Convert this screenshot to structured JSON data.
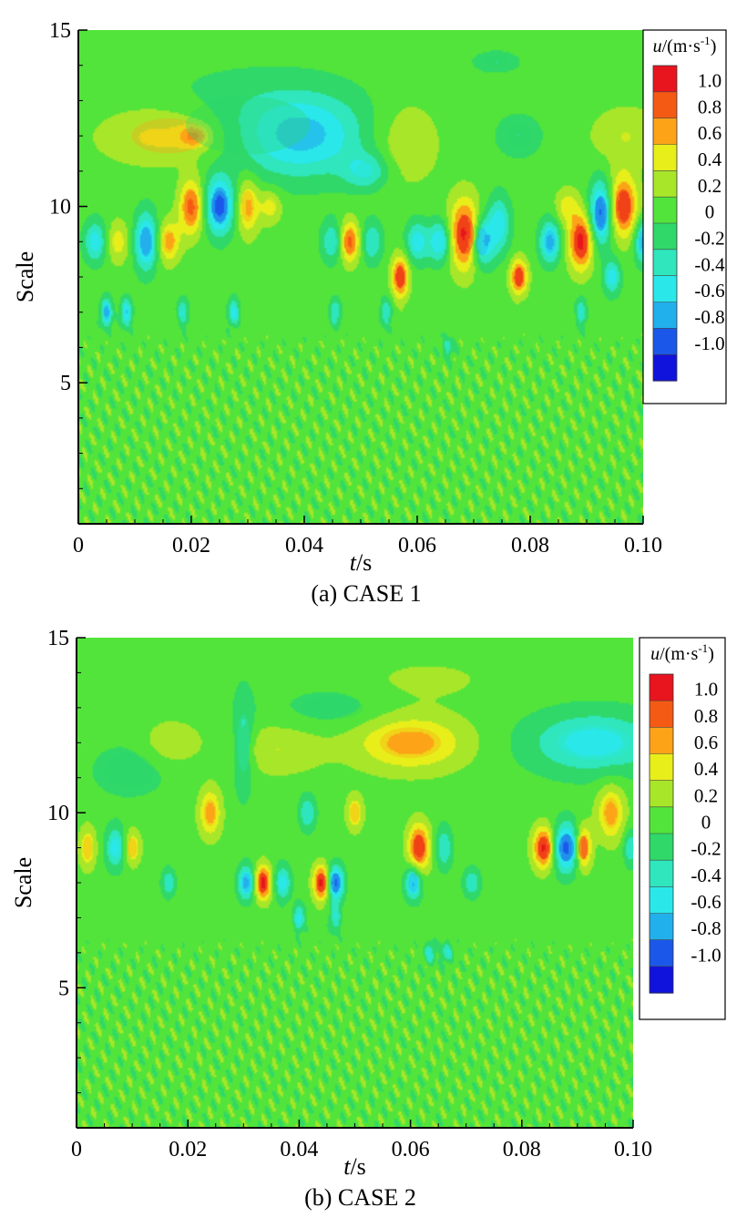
{
  "chart_data": [
    {
      "type": "heatmap",
      "panel_id": "a",
      "caption": "(a)  CASE 1",
      "xlabel": "t/s",
      "xlabel_italic": "t",
      "xlabel_unit": "/s",
      "ylabel": "Scale",
      "xlim": [
        0,
        0.1
      ],
      "ylim": [
        1,
        15
      ],
      "x_ticks": [
        0,
        0.02,
        0.04,
        0.06,
        0.08,
        0.1
      ],
      "x_tick_labels": [
        "0",
        "0.02",
        "0.04",
        "0.06",
        "0.08",
        "0.10"
      ],
      "y_ticks": [
        5,
        10,
        15
      ],
      "y_tick_labels": [
        "5",
        "10",
        "15"
      ],
      "colorbar": {
        "title": "u/(m·s-1)",
        "title_var": "u",
        "title_main": "/(m·s",
        "title_sup": "-1",
        "title_end": ")",
        "levels": [
          1.0,
          0.8,
          0.6,
          0.4,
          0.2,
          0,
          -0.2,
          -0.4,
          -0.6,
          -0.8,
          -1.0
        ],
        "labels": [
          "1.0",
          "0.8",
          "0.6",
          "0.4",
          "0.2",
          "0",
          "-0.2",
          "-0.4",
          "-0.6",
          "-0.8",
          "-1.0"
        ],
        "colors": [
          "#e8141e",
          "#f55a14",
          "#fca318",
          "#e8ee1a",
          "#a8e62a",
          "#52e43a",
          "#2fd869",
          "#2fe6bd",
          "#2ae8ea",
          "#22b0ec",
          "#1b58ea",
          "#1013dc"
        ]
      },
      "background_value": 0,
      "features": [
        {
          "t": 0.016,
          "scale": 12.0,
          "u": 0.5,
          "wt": 0.012,
          "ws": 0.9
        },
        {
          "t": 0.0205,
          "scale": 12.0,
          "u": 0.6,
          "wt": 0.0025,
          "ws": 0.3
        },
        {
          "t": 0.04,
          "scale": 12.0,
          "u": -0.6,
          "wt": 0.01,
          "ws": 1.1
        },
        {
          "t": 0.03,
          "scale": 12.3,
          "u": -0.3,
          "wt": 0.02,
          "ws": 1.5
        },
        {
          "t": 0.051,
          "scale": 11.0,
          "u": -0.5,
          "wt": 0.004,
          "ws": 0.5
        },
        {
          "t": 0.058,
          "scale": 11.8,
          "u": 0.3,
          "wt": 0.006,
          "ws": 1.2
        },
        {
          "t": 0.078,
          "scale": 12.0,
          "u": -0.3,
          "wt": 0.004,
          "ws": 0.6
        },
        {
          "t": 0.097,
          "scale": 12.0,
          "u": 0.3,
          "wt": 0.006,
          "ws": 0.8
        },
        {
          "t": 0.074,
          "scale": 14.1,
          "u": -0.3,
          "wt": 0.004,
          "ws": 0.3
        },
        {
          "t": 0.003,
          "scale": 9.0,
          "u": -0.6,
          "wt": 0.002,
          "ws": 0.6
        },
        {
          "t": 0.007,
          "scale": 9.0,
          "u": 0.4,
          "wt": 0.002,
          "ws": 0.6
        },
        {
          "t": 0.012,
          "scale": 9.0,
          "u": -0.9,
          "wt": 0.002,
          "ws": 0.8
        },
        {
          "t": 0.016,
          "scale": 9.0,
          "u": 0.6,
          "wt": 0.002,
          "ws": 0.6
        },
        {
          "t": 0.02,
          "scale": 10.0,
          "u": 0.8,
          "wt": 0.0022,
          "ws": 0.8
        },
        {
          "t": 0.025,
          "scale": 10.0,
          "u": -1.0,
          "wt": 0.0025,
          "ws": 0.8
        },
        {
          "t": 0.03,
          "scale": 10.0,
          "u": 0.6,
          "wt": 0.002,
          "ws": 0.8
        },
        {
          "t": 0.034,
          "scale": 10.0,
          "u": 0.4,
          "wt": 0.002,
          "ws": 0.5
        },
        {
          "t": 0.045,
          "scale": 9.0,
          "u": -0.5,
          "wt": 0.002,
          "ws": 0.6
        },
        {
          "t": 0.048,
          "scale": 9.0,
          "u": 0.8,
          "wt": 0.0018,
          "ws": 0.6
        },
        {
          "t": 0.052,
          "scale": 9.0,
          "u": -0.5,
          "wt": 0.0018,
          "ws": 0.6
        },
        {
          "t": 0.057,
          "scale": 8.0,
          "u": 0.9,
          "wt": 0.0015,
          "ws": 0.6
        },
        {
          "t": 0.06,
          "scale": 9.0,
          "u": -0.6,
          "wt": 0.002,
          "ws": 0.6
        },
        {
          "t": 0.064,
          "scale": 9.0,
          "u": -0.7,
          "wt": 0.002,
          "ws": 0.6
        },
        {
          "t": 0.0685,
          "scale": 9.2,
          "u": 1.0,
          "wt": 0.0028,
          "ws": 1.0
        },
        {
          "t": 0.0715,
          "scale": 9.0,
          "u": -0.9,
          "wt": 0.002,
          "ws": 0.7
        },
        {
          "t": 0.0745,
          "scale": 9.5,
          "u": -0.6,
          "wt": 0.002,
          "ws": 0.8
        },
        {
          "t": 0.078,
          "scale": 8.0,
          "u": 0.9,
          "wt": 0.0015,
          "ws": 0.5
        },
        {
          "t": 0.0835,
          "scale": 9.0,
          "u": -0.8,
          "wt": 0.0018,
          "ws": 0.6
        },
        {
          "t": 0.089,
          "scale": 9.0,
          "u": 1.0,
          "wt": 0.0022,
          "ws": 0.8
        },
        {
          "t": 0.0925,
          "scale": 9.8,
          "u": -1.0,
          "wt": 0.002,
          "ws": 0.9
        },
        {
          "t": 0.0965,
          "scale": 10.0,
          "u": 0.9,
          "wt": 0.0025,
          "ws": 0.9
        },
        {
          "t": 0.1,
          "scale": 9.0,
          "u": -0.8,
          "wt": 0.0015,
          "ws": 0.6
        },
        {
          "t": 0.0865,
          "scale": 10.0,
          "u": 0.4,
          "wt": 0.002,
          "ws": 0.5
        },
        {
          "t": 0.0945,
          "scale": 8.0,
          "u": -0.6,
          "wt": 0.0015,
          "ws": 0.5
        },
        {
          "t": 0.005,
          "scale": 7.0,
          "u": -0.8,
          "wt": 0.001,
          "ws": 0.4
        },
        {
          "t": 0.0085,
          "scale": 7.0,
          "u": -0.7,
          "wt": 0.001,
          "ws": 0.4
        },
        {
          "t": 0.0185,
          "scale": 7.0,
          "u": -0.5,
          "wt": 0.001,
          "ws": 0.4
        },
        {
          "t": 0.0275,
          "scale": 7.0,
          "u": -0.6,
          "wt": 0.001,
          "ws": 0.4
        },
        {
          "t": 0.0455,
          "scale": 7.0,
          "u": -0.5,
          "wt": 0.001,
          "ws": 0.4
        },
        {
          "t": 0.0545,
          "scale": 7.0,
          "u": -0.5,
          "wt": 0.001,
          "ws": 0.4
        },
        {
          "t": 0.089,
          "scale": 7.0,
          "u": -0.5,
          "wt": 0.001,
          "ws": 0.4
        },
        {
          "t": 0.0655,
          "scale": 6.0,
          "u": -0.4,
          "wt": 0.001,
          "ws": 0.3
        }
      ]
    },
    {
      "type": "heatmap",
      "panel_id": "b",
      "caption": "(b)  CASE 2",
      "xlabel": "t/s",
      "xlabel_italic": "t",
      "xlabel_unit": "/s",
      "ylabel": "Scale",
      "xlim": [
        0,
        0.1
      ],
      "ylim": [
        1,
        15
      ],
      "x_ticks": [
        0,
        0.02,
        0.04,
        0.06,
        0.08,
        0.1
      ],
      "x_tick_labels": [
        "0",
        "0.02",
        "0.04",
        "0.06",
        "0.08",
        "0.10"
      ],
      "y_ticks": [
        5,
        10,
        15
      ],
      "y_tick_labels": [
        "5",
        "10",
        "15"
      ],
      "colorbar": {
        "title": "u/(m·s-1)",
        "title_var": "u",
        "title_main": "/(m·s",
        "title_sup": "-1",
        "title_end": ")",
        "levels": [
          1.0,
          0.8,
          0.6,
          0.4,
          0.2,
          0,
          -0.2,
          -0.4,
          -0.6,
          -0.8,
          -1.0
        ],
        "labels": [
          "1.0",
          "0.8",
          "0.6",
          "0.4",
          "0.2",
          "0",
          "-0.2",
          "-0.4",
          "-0.6",
          "-0.8",
          "-1.0"
        ],
        "colors": [
          "#e8141e",
          "#f55a14",
          "#fca318",
          "#e8ee1a",
          "#a8e62a",
          "#52e43a",
          "#2fd869",
          "#2fe6bd",
          "#2ae8ea",
          "#22b0ec",
          "#1b58ea",
          "#1013dc"
        ]
      },
      "background_value": 0,
      "features": [
        {
          "t": 0.06,
          "scale": 12.0,
          "u": 0.6,
          "wt": 0.01,
          "ws": 0.8
        },
        {
          "t": 0.036,
          "scale": 11.8,
          "u": 0.3,
          "wt": 0.008,
          "ws": 0.7
        },
        {
          "t": 0.017,
          "scale": 12.0,
          "u": 0.3,
          "wt": 0.005,
          "ws": 0.6
        },
        {
          "t": 0.093,
          "scale": 12.0,
          "u": -0.6,
          "wt": 0.012,
          "ws": 0.9
        },
        {
          "t": 0.0095,
          "scale": 11.2,
          "u": -0.2,
          "wt": 0.008,
          "ws": 0.9
        },
        {
          "t": 0.03,
          "scale": 12.0,
          "u": -0.4,
          "wt": 0.002,
          "ws": 1.5
        },
        {
          "t": 0.046,
          "scale": 13.0,
          "u": -0.2,
          "wt": 0.01,
          "ws": 0.6
        },
        {
          "t": 0.063,
          "scale": 13.8,
          "u": 0.15,
          "wt": 0.012,
          "ws": 0.6
        },
        {
          "t": 0.002,
          "scale": 9.0,
          "u": 0.5,
          "wt": 0.0015,
          "ws": 0.6
        },
        {
          "t": 0.007,
          "scale": 9.0,
          "u": -0.6,
          "wt": 0.0018,
          "ws": 0.6
        },
        {
          "t": 0.01,
          "scale": 9.0,
          "u": 0.5,
          "wt": 0.0015,
          "ws": 0.5
        },
        {
          "t": 0.024,
          "scale": 10.0,
          "u": 0.6,
          "wt": 0.002,
          "ws": 0.7
        },
        {
          "t": 0.0335,
          "scale": 8.0,
          "u": 1.0,
          "wt": 0.0015,
          "ws": 0.5
        },
        {
          "t": 0.0305,
          "scale": 8.0,
          "u": -0.8,
          "wt": 0.0015,
          "ws": 0.5
        },
        {
          "t": 0.037,
          "scale": 8.0,
          "u": -0.6,
          "wt": 0.0015,
          "ws": 0.5
        },
        {
          "t": 0.044,
          "scale": 8.0,
          "u": 1.0,
          "wt": 0.0015,
          "ws": 0.5
        },
        {
          "t": 0.0465,
          "scale": 8.0,
          "u": -1.0,
          "wt": 0.0015,
          "ws": 0.5
        },
        {
          "t": 0.05,
          "scale": 10.0,
          "u": 0.5,
          "wt": 0.0015,
          "ws": 0.5
        },
        {
          "t": 0.0615,
          "scale": 9.0,
          "u": 0.9,
          "wt": 0.002,
          "ws": 0.7
        },
        {
          "t": 0.0605,
          "scale": 8.0,
          "u": -0.8,
          "wt": 0.0015,
          "ws": 0.5
        },
        {
          "t": 0.066,
          "scale": 9.0,
          "u": -0.5,
          "wt": 0.0015,
          "ws": 0.6
        },
        {
          "t": 0.071,
          "scale": 8.0,
          "u": -0.5,
          "wt": 0.0015,
          "ws": 0.4
        },
        {
          "t": 0.084,
          "scale": 9.0,
          "u": 1.0,
          "wt": 0.002,
          "ws": 0.6
        },
        {
          "t": 0.088,
          "scale": 9.0,
          "u": -1.0,
          "wt": 0.0025,
          "ws": 0.7
        },
        {
          "t": 0.091,
          "scale": 9.0,
          "u": 0.9,
          "wt": 0.0015,
          "ws": 0.6
        },
        {
          "t": 0.096,
          "scale": 10.0,
          "u": 0.6,
          "wt": 0.0025,
          "ws": 0.8
        },
        {
          "t": 0.0995,
          "scale": 9.0,
          "u": -0.5,
          "wt": 0.0012,
          "ws": 0.5
        },
        {
          "t": 0.0165,
          "scale": 8.0,
          "u": -0.5,
          "wt": 0.0012,
          "ws": 0.4
        },
        {
          "t": 0.0415,
          "scale": 10.0,
          "u": -0.5,
          "wt": 0.0015,
          "ws": 0.5
        },
        {
          "t": 0.04,
          "scale": 7.0,
          "u": -0.6,
          "wt": 0.001,
          "ws": 0.4
        },
        {
          "t": 0.0465,
          "scale": 7.0,
          "u": -0.5,
          "wt": 0.001,
          "ws": 0.4
        },
        {
          "t": 0.0635,
          "scale": 6.0,
          "u": -0.5,
          "wt": 0.001,
          "ws": 0.3
        },
        {
          "t": 0.0665,
          "scale": 6.0,
          "u": -0.5,
          "wt": 0.001,
          "ws": 0.3
        }
      ]
    }
  ]
}
